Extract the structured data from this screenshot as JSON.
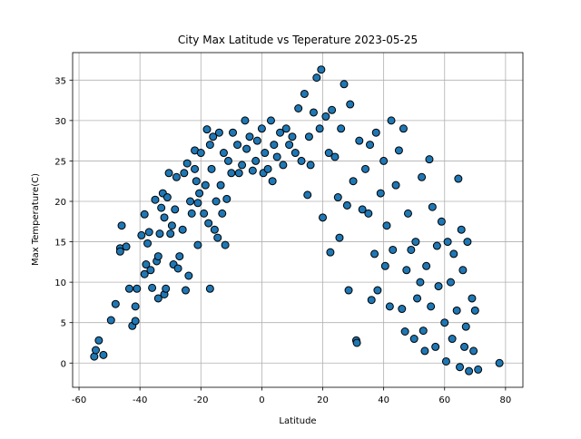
{
  "chart_data": {
    "type": "scatter",
    "title": "City Max Latitude vs Teperature 2023-05-25",
    "x_label": "Latitude",
    "y_label": "Max Temperature(C)",
    "xlim": [
      -62.1,
      85.7
    ],
    "ylim": [
      -3.0,
      38.4
    ],
    "xticks": [
      -60,
      -40,
      -20,
      0,
      20,
      40,
      60,
      80
    ],
    "yticks": [
      0,
      5,
      10,
      15,
      20,
      25,
      30,
      35
    ],
    "grid": true,
    "color": "#1f77b4",
    "x": [
      -55,
      -54.5,
      -53.5,
      -52,
      -49.5,
      -48,
      -46.5,
      -46.5,
      -46,
      -44.5,
      -43.5,
      -42.5,
      -41.5,
      -41.5,
      -41,
      -39.5,
      -38.5,
      -38.5,
      -38,
      -37.5,
      -37,
      -36.5,
      -36,
      -35,
      -34.5,
      -34,
      -34,
      -33.5,
      -33,
      -32.5,
      -32,
      -32,
      -31.5,
      -31,
      -30.5,
      -30,
      -29.5,
      -29,
      -28.5,
      -28,
      -27.5,
      -27,
      -26,
      -25.5,
      -25,
      -24.5,
      -24,
      -23.5,
      -23,
      -22,
      -22,
      -21.5,
      -21,
      -21,
      -20.5,
      -20,
      -19,
      -18.5,
      -18,
      -17.5,
      -17,
      -17,
      -16.5,
      -16,
      -15.5,
      -15,
      -14.5,
      -14,
      -13.5,
      -13,
      -12.5,
      -12,
      -11.5,
      -11,
      -10,
      -9.5,
      -8,
      -7.5,
      -6.5,
      -5.5,
      -5,
      -4,
      -3,
      -2,
      -1.5,
      0,
      0.5,
      1,
      2,
      3,
      3.5,
      4,
      5,
      6,
      7,
      8,
      9,
      10,
      11,
      12,
      13,
      14,
      15,
      15.5,
      16,
      17,
      18,
      19,
      19.5,
      20,
      21,
      22,
      22.5,
      23,
      24,
      25,
      25.5,
      26,
      27,
      28,
      28.5,
      29,
      30,
      31,
      31.2,
      32,
      33,
      34,
      35,
      35.5,
      36,
      37,
      37.5,
      38,
      39,
      40,
      40.5,
      41,
      42,
      42.5,
      43,
      44,
      45,
      46,
      46.5,
      47,
      47.5,
      48,
      49,
      50,
      50.5,
      51,
      52,
      52.5,
      53,
      53.5,
      54,
      55,
      55.5,
      56,
      57,
      57.5,
      58,
      59,
      60,
      60.5,
      61,
      62,
      62.5,
      63,
      64,
      64.5,
      65,
      65.5,
      66,
      66.5,
      67,
      67.5,
      68,
      69,
      69.5,
      70,
      71,
      78
    ],
    "values": [
      0.8,
      1.6,
      2.8,
      1.0,
      5.3,
      7.3,
      14.2,
      13.8,
      17.0,
      14.4,
      9.2,
      4.6,
      5.2,
      7.0,
      9.2,
      15.8,
      18.4,
      11.0,
      12.2,
      14.8,
      16.2,
      11.5,
      9.3,
      20.2,
      12.6,
      13.2,
      8.0,
      16.0,
      19.2,
      21.0,
      18.0,
      8.5,
      9.2,
      20.5,
      23.5,
      16.0,
      17.0,
      12.2,
      19.0,
      23.0,
      11.7,
      13.2,
      16.5,
      23.5,
      9.0,
      24.7,
      10.8,
      20.0,
      18.5,
      26.3,
      24.0,
      22.5,
      14.6,
      19.8,
      21.0,
      26.0,
      18.5,
      22.0,
      28.9,
      17.3,
      27.0,
      9.2,
      24.0,
      28.0,
      16.5,
      20.0,
      15.5,
      28.5,
      22.0,
      18.5,
      26.0,
      14.6,
      20.3,
      25.0,
      23.5,
      28.5,
      27.0,
      23.5,
      24.5,
      30.0,
      26.5,
      28.0,
      23.8,
      25.0,
      27.5,
      29.0,
      23.5,
      26.0,
      24.0,
      30.0,
      22.5,
      27.0,
      25.5,
      28.5,
      24.5,
      29.0,
      27.0,
      28.0,
      26.0,
      31.5,
      25.0,
      33.3,
      20.8,
      28.0,
      24.5,
      31.0,
      35.3,
      29.0,
      36.3,
      18.0,
      30.5,
      26.0,
      13.7,
      31.3,
      25.5,
      20.5,
      15.5,
      29.0,
      34.5,
      19.5,
      9.0,
      32.0,
      22.5,
      2.8,
      2.5,
      27.5,
      19.0,
      24.0,
      18.5,
      27.0,
      7.8,
      13.5,
      28.5,
      9.0,
      21.0,
      25.0,
      12.0,
      17.0,
      7.0,
      30.0,
      14.0,
      22.0,
      26.3,
      6.7,
      29.0,
      3.9,
      11.5,
      18.5,
      14.0,
      3.0,
      15.0,
      8.0,
      10.0,
      23.0,
      4.0,
      1.5,
      12.0,
      25.2,
      7.0,
      19.3,
      2.0,
      14.5,
      9.5,
      17.5,
      5.0,
      0.2,
      15.0,
      10.0,
      3.0,
      13.5,
      6.5,
      22.8,
      -0.5,
      16.5,
      11.5,
      2.0,
      4.5,
      15.0,
      -1.0,
      8.0,
      1.5,
      6.5,
      -0.8,
      0
    ]
  }
}
